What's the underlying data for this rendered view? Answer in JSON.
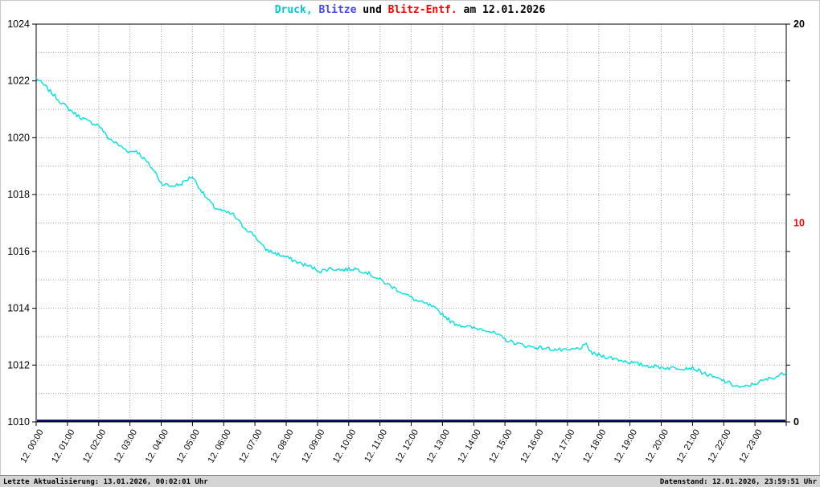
{
  "title": {
    "druck": "Druck,",
    "blitze": " Blitze",
    "und": " und ",
    "blitz_entf": "Blitz-Entf.",
    "date": " am 12.01.2026"
  },
  "colors": {
    "pressure_line": "#00e0e0",
    "blitze_line": "#000066",
    "blitz_entf": "#ff0000",
    "title_druck": "#00cccc",
    "title_blitze": "#4444ff",
    "title_entf": "#ff0000",
    "grid": "#a0a0a0",
    "axis": "#000000",
    "right_tick_highlight": "#ff0000",
    "footer_bg": "#d4d4d4"
  },
  "footer": {
    "left": "Letzte Aktualisierung: 13.01.2026, 00:02:01 Uhr",
    "right": "Datenstand: 12.01.2026, 23:59:51 Uhr"
  },
  "axes": {
    "left_ticks": [
      1024,
      1022,
      1020,
      1018,
      1016,
      1014,
      1012,
      1010
    ],
    "right_ticks": [
      {
        "value": "20",
        "color": "#000000"
      },
      {
        "value": "10",
        "color": "#ff0000"
      },
      {
        "value": "0",
        "color": "#000000"
      }
    ],
    "x_labels": [
      "12. 00:00",
      "12. 01:00",
      "12. 02:00",
      "12. 03:00",
      "12. 04:00",
      "12. 05:00",
      "12. 06:00",
      "12. 07:00",
      "12. 08:00",
      "12. 09:00",
      "12. 10:00",
      "12. 11:00",
      "12. 12:00",
      "12. 13:00",
      "12. 14:00",
      "12. 15:00",
      "12. 16:00",
      "12. 17:00",
      "12. 18:00",
      "12. 19:00",
      "12. 20:00",
      "12. 21:00",
      "12. 22:00",
      "12. 23:00"
    ]
  },
  "chart_data": {
    "type": "line",
    "title": "Druck, Blitze und Blitz-Entf. am 12.01.2026",
    "x_range_hours": [
      0,
      24
    ],
    "y_left": {
      "min": 1010,
      "max": 1024,
      "tick_step": 2
    },
    "y_right": {
      "min": 0,
      "max": 20,
      "ticks": [
        0,
        10,
        20
      ]
    },
    "grid": {
      "h_step": 1,
      "v_step_hours": 1,
      "style": "dotted"
    },
    "series": [
      {
        "name": "Druck",
        "axis": "left",
        "color": "#00e0e0",
        "points": [
          [
            0,
            1022.1
          ],
          [
            0.3,
            1021.8
          ],
          [
            0.7,
            1021.35
          ],
          [
            1,
            1021.05
          ],
          [
            1.3,
            1020.8
          ],
          [
            1.7,
            1020.55
          ],
          [
            2,
            1020.45
          ],
          [
            2.3,
            1020.0
          ],
          [
            2.7,
            1019.7
          ],
          [
            3,
            1019.5
          ],
          [
            3.2,
            1019.55
          ],
          [
            3.5,
            1019.2
          ],
          [
            3.8,
            1018.8
          ],
          [
            4,
            1018.4
          ],
          [
            4.3,
            1018.3
          ],
          [
            4.6,
            1018.35
          ],
          [
            4.8,
            1018.5
          ],
          [
            5,
            1018.65
          ],
          [
            5.1,
            1018.45
          ],
          [
            5.4,
            1017.95
          ],
          [
            5.7,
            1017.55
          ],
          [
            6,
            1017.4
          ],
          [
            6.3,
            1017.3
          ],
          [
            6.6,
            1016.9
          ],
          [
            7,
            1016.55
          ],
          [
            7.3,
            1016.1
          ],
          [
            7.6,
            1015.95
          ],
          [
            8,
            1015.8
          ],
          [
            8.4,
            1015.6
          ],
          [
            8.8,
            1015.45
          ],
          [
            9.1,
            1015.3
          ],
          [
            9.4,
            1015.4
          ],
          [
            9.8,
            1015.35
          ],
          [
            10.2,
            1015.4
          ],
          [
            10.6,
            1015.25
          ],
          [
            11,
            1015.0
          ],
          [
            11.4,
            1014.75
          ],
          [
            11.8,
            1014.5
          ],
          [
            12.2,
            1014.25
          ],
          [
            12.6,
            1014.1
          ],
          [
            13,
            1013.8
          ],
          [
            13.3,
            1013.5
          ],
          [
            13.6,
            1013.4
          ],
          [
            14,
            1013.3
          ],
          [
            14.4,
            1013.25
          ],
          [
            14.7,
            1013.1
          ],
          [
            15,
            1012.9
          ],
          [
            15.4,
            1012.75
          ],
          [
            15.8,
            1012.65
          ],
          [
            16.2,
            1012.6
          ],
          [
            16.6,
            1012.55
          ],
          [
            17,
            1012.5
          ],
          [
            17.4,
            1012.6
          ],
          [
            17.6,
            1012.7
          ],
          [
            17.8,
            1012.4
          ],
          [
            18.2,
            1012.3
          ],
          [
            18.6,
            1012.2
          ],
          [
            19,
            1012.1
          ],
          [
            19.4,
            1012.0
          ],
          [
            19.8,
            1011.95
          ],
          [
            20.2,
            1011.9
          ],
          [
            20.6,
            1011.9
          ],
          [
            21,
            1011.9
          ],
          [
            21.3,
            1011.75
          ],
          [
            21.6,
            1011.6
          ],
          [
            22,
            1011.45
          ],
          [
            22.3,
            1011.3
          ],
          [
            22.6,
            1011.2
          ],
          [
            23,
            1011.35
          ],
          [
            23.4,
            1011.5
          ],
          [
            23.7,
            1011.6
          ],
          [
            24,
            1011.75
          ]
        ]
      },
      {
        "name": "Blitze",
        "axis": "right",
        "color": "#000066",
        "constant": 0
      },
      {
        "name": "Blitz-Entf.",
        "axis": "right",
        "color": "#ff0000",
        "points": []
      }
    ]
  }
}
